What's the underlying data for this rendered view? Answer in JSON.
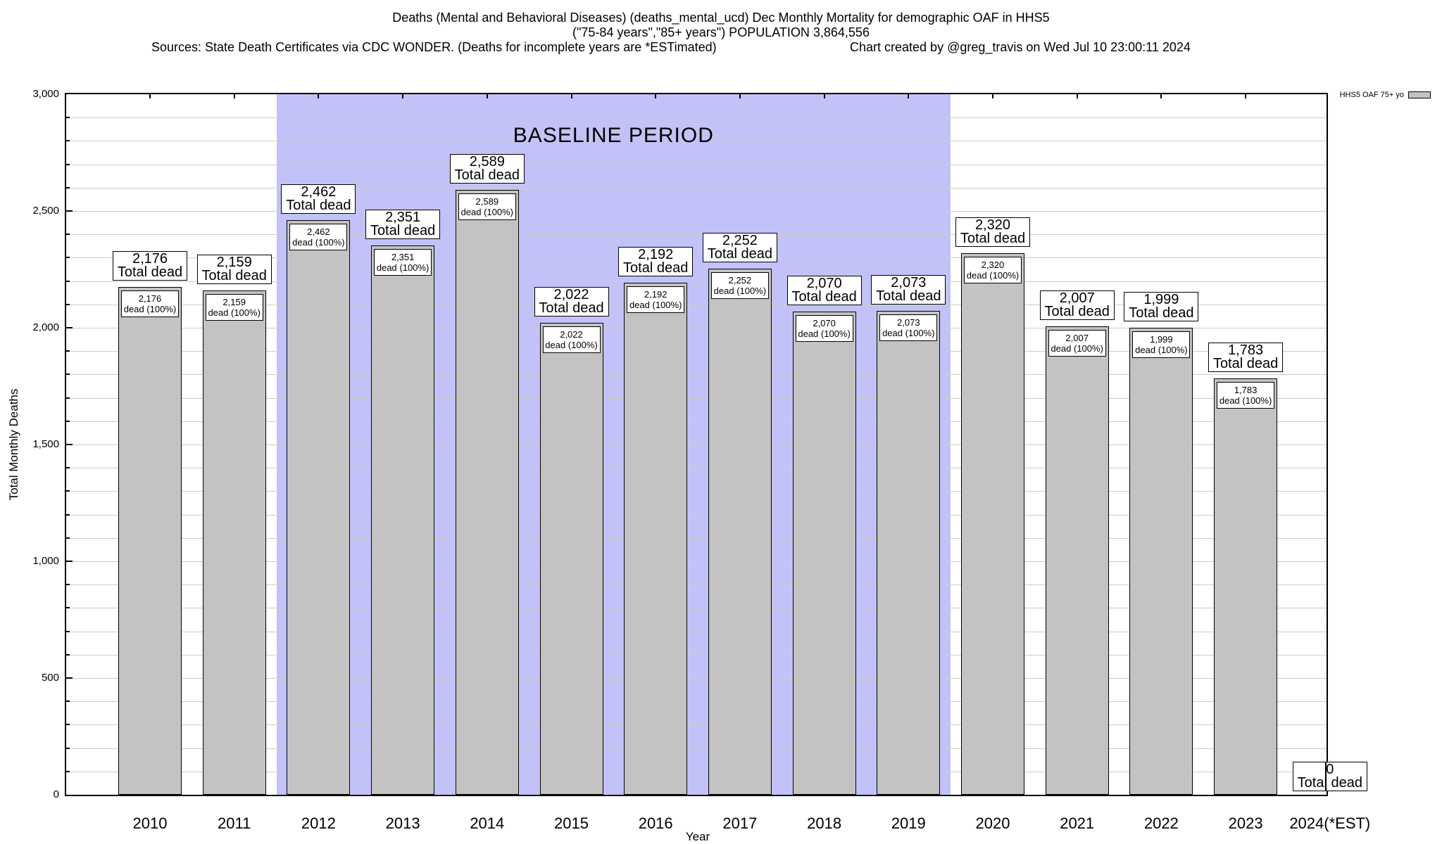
{
  "title": {
    "line1": "Deaths (Mental and Behavioral Diseases) (deaths_mental_ucd) Dec Monthly Mortality for demographic OAF in HHS5",
    "line2": "(\"75-84 years\",\"85+ years\") POPULATION 3,864,556",
    "line3_left": "Sources: State Death Certificates via CDC WONDER. (Deaths for incomplete years are *ESTimated)",
    "line3_right": "Chart created by @greg_travis on Wed Jul 10 23:00:11 2024"
  },
  "legend": {
    "label": "HHS5 OAF 75+ yo"
  },
  "axes": {
    "y_label": "Total Monthly Deaths",
    "x_label": "Year",
    "y_ticks": [
      "0",
      "500",
      "1,000",
      "1,500",
      "2,000",
      "2,500",
      "3,000"
    ]
  },
  "chart_data": {
    "type": "bar",
    "categories": [
      "2010",
      "2011",
      "2012",
      "2013",
      "2014",
      "2015",
      "2016",
      "2017",
      "2018",
      "2019",
      "2020",
      "2021",
      "2022",
      "2023",
      "2024(*EST)"
    ],
    "values": [
      2176,
      2159,
      2462,
      2351,
      2589,
      2022,
      2192,
      2252,
      2070,
      2073,
      2320,
      2007,
      1999,
      1783,
      0
    ],
    "value_labels": [
      "2,176",
      "2,159",
      "2,462",
      "2,351",
      "2,589",
      "2,022",
      "2,192",
      "2,252",
      "2,070",
      "2,073",
      "2,320",
      "2,007",
      "1,999",
      "1,783",
      "0"
    ],
    "outer_label_line2": "Total dead",
    "inner_label_line2": "dead (100%)",
    "title": "Deaths (Mental and Behavioral Diseases) (deaths_mental_ucd) Dec Monthly Mortality for demographic OAF in HHS5",
    "xlabel": "Year",
    "ylabel": "Total Monthly Deaths",
    "ylim": [
      0,
      3000
    ],
    "y_major_step": 500,
    "y_minor_step": 100,
    "grid": true,
    "baseline_period": {
      "label": "BASELINE PERIOD",
      "start": "2012",
      "end": "2019"
    },
    "legend_entry": "HHS5 OAF 75+ yo",
    "legend_position": "top-right-outside",
    "bar_color": "#c3c3c3",
    "baseline_fill_color": "#c2c2f8",
    "bar_border_color": "#000000"
  }
}
